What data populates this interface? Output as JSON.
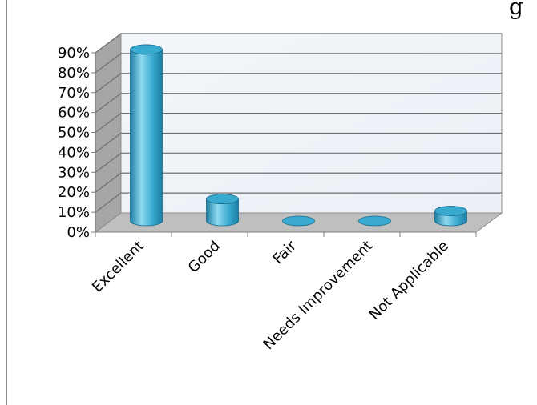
{
  "top_text": "g",
  "chart_data": {
    "type": "bar",
    "style": "3d-cylinder",
    "categories": [
      "Excellent",
      "Good",
      "Fair",
      "Needs Improvement",
      "Not Applicable"
    ],
    "values": [
      86,
      11,
      0,
      0,
      5
    ],
    "unit": "%",
    "ylim": [
      0,
      90
    ],
    "y_ticks": [
      "0%",
      "10%",
      "20%",
      "30%",
      "40%",
      "50%",
      "60%",
      "70%",
      "80%",
      "90%"
    ],
    "grid": true,
    "legend": "none",
    "colors": {
      "bar": "#3aa9cf",
      "bar_dark": "#1d7fa3",
      "bar_light": "#8fdaf0",
      "wall": "#eaf0f6",
      "side_wall": "#a6a6a6",
      "floor": "#bfbfbf",
      "gridline": "#6f6f6f"
    }
  }
}
